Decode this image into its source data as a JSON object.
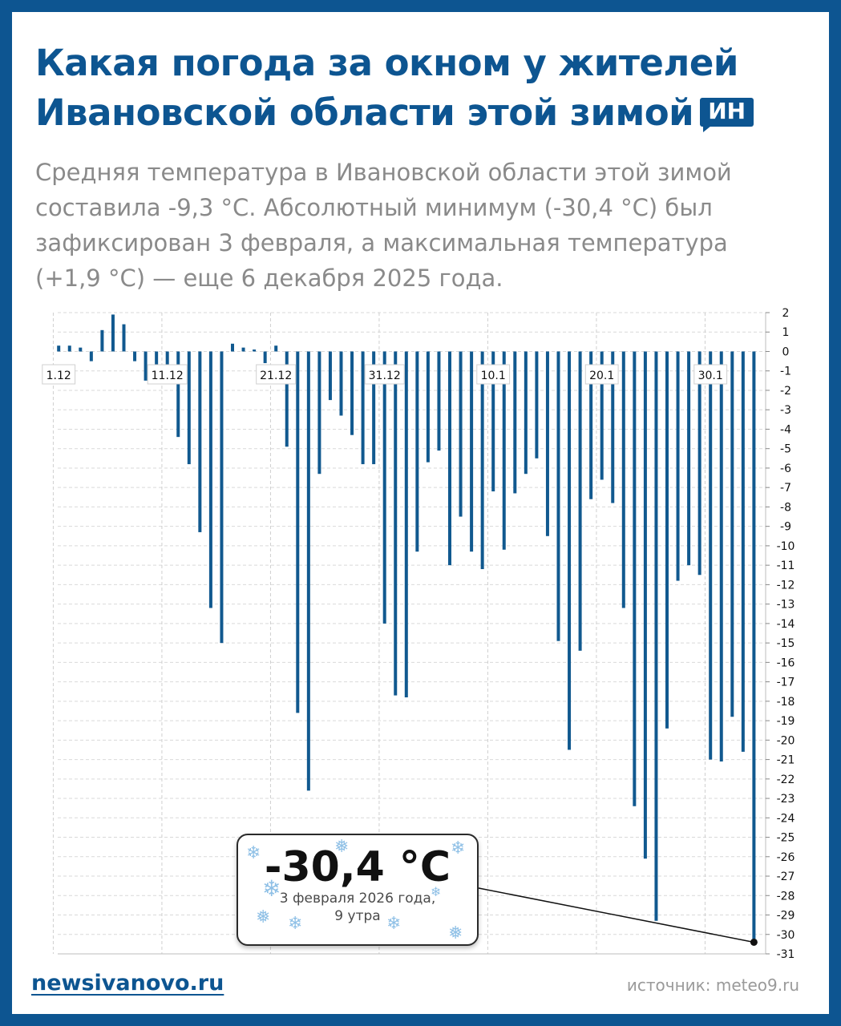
{
  "header": {
    "title_line1": "Какая погода за окном у жителей",
    "title_line2": "Ивановской области этой зимой",
    "badge": "ИН"
  },
  "intro": {
    "line1": "Средняя температура в Ивановской области этой зимой",
    "line2": "составила -9,3 °С. Абсолютный минимум (-30,4 °С) был",
    "line3": "зафиксирован 3 февраля, а максимальная температура",
    "line4": "(+1,9 °С) — еще 6 декабря 2025 года."
  },
  "callout": {
    "value": "-30,4 °С",
    "note_line1": "3 февраля 2026 года,",
    "note_line2": "9 утра"
  },
  "footer": {
    "site": "newsivanovo.ru",
    "source": "источник: meteo9.ru"
  },
  "colors": {
    "brand": "#0d5591",
    "bar": "#11598f",
    "text_gray": "#8a8a8a"
  },
  "icons": [
    "snowflake-icon"
  ],
  "chart_data": {
    "type": "bar",
    "x_labels": [
      "1.12",
      "11.12",
      "21.12",
      "31.12",
      "10.1",
      "20.1",
      "30.1"
    ],
    "x_label_every": 10,
    "categories": [
      "1.12",
      "2.12",
      "3.12",
      "4.12",
      "5.12",
      "6.12",
      "7.12",
      "8.12",
      "9.12",
      "10.12",
      "11.12",
      "12.12",
      "13.12",
      "14.12",
      "15.12",
      "16.12",
      "17.12",
      "18.12",
      "19.12",
      "20.12",
      "21.12",
      "22.12",
      "23.12",
      "24.12",
      "25.12",
      "26.12",
      "27.12",
      "28.12",
      "29.12",
      "30.12",
      "31.12",
      "1.1",
      "2.1",
      "3.1",
      "4.1",
      "5.1",
      "6.1",
      "7.1",
      "8.1",
      "9.1",
      "10.1",
      "11.1",
      "12.1",
      "13.1",
      "14.1",
      "15.1",
      "16.1",
      "17.1",
      "18.1",
      "19.1",
      "20.1",
      "21.1",
      "22.1",
      "23.1",
      "24.1",
      "25.1",
      "26.1",
      "27.1",
      "28.1",
      "29.1",
      "30.1",
      "31.1",
      "1.2",
      "2.2",
      "3.2"
    ],
    "values": [
      0.3,
      0.3,
      0.2,
      -0.5,
      1.1,
      1.9,
      1.4,
      -0.5,
      -1.5,
      -1.0,
      -1.3,
      -4.4,
      -5.8,
      -9.3,
      -13.2,
      -15.0,
      0.4,
      0.2,
      0.1,
      -0.6,
      0.3,
      -4.9,
      -18.6,
      -22.6,
      -6.3,
      -2.5,
      -3.3,
      -4.3,
      -5.8,
      -5.8,
      -14.0,
      -17.7,
      -17.8,
      -10.3,
      -5.7,
      -5.1,
      -11.0,
      -8.5,
      -10.3,
      -11.2,
      -7.2,
      -10.2,
      -7.3,
      -6.3,
      -5.5,
      -9.5,
      -14.9,
      -20.5,
      -15.4,
      -7.6,
      -6.6,
      -7.8,
      -13.2,
      -23.4,
      -26.1,
      -29.3,
      -19.4,
      -11.8,
      -11.0,
      -11.5,
      -21.0,
      -21.1,
      -18.8,
      -20.6,
      -30.4
    ],
    "ylim": [
      -31,
      2
    ],
    "y_ticks": [
      2,
      1,
      0,
      -1,
      -2,
      -3,
      -4,
      -5,
      -6,
      -7,
      -8,
      -9,
      -10,
      -11,
      -12,
      -13,
      -14,
      -15,
      -16,
      -17,
      -18,
      -19,
      -20,
      -21,
      -22,
      -23,
      -24,
      -25,
      -26,
      -27,
      -28,
      -29,
      -30,
      -31
    ],
    "grid": "horizontal dashed",
    "annotation": {
      "index": 64,
      "text": "-30,4 °С"
    }
  }
}
